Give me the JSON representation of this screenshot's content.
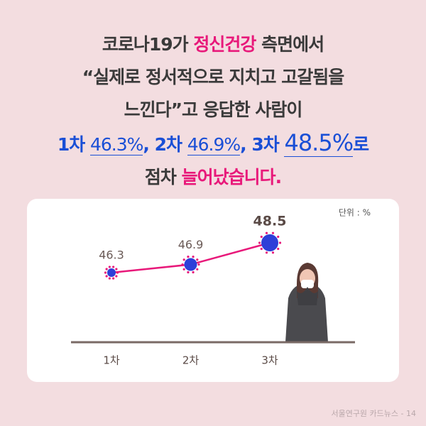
{
  "headline": {
    "lines": [
      [
        {
          "text": "코로나19가 "
        },
        {
          "text": "정신건강",
          "color": "#e8197a"
        },
        {
          "text": " 측면에서"
        }
      ],
      [
        {
          "text": "“실제로 정서적으로 지치고 고갈됨을"
        }
      ],
      [
        {
          "text": "느낀다”고 응답한 사람이"
        }
      ],
      [
        {
          "text": "1차 ",
          "color": "#1a4fd6"
        },
        {
          "text": "46.3%",
          "color": "#1a4fd6"
        },
        {
          "text": ", 2차 ",
          "color": "#1a4fd6"
        },
        {
          "text": "46.9%",
          "color": "#1a4fd6"
        },
        {
          "text": ", 3차 ",
          "color": "#1a4fd6"
        },
        {
          "text": "48.5%",
          "color": "#1a4fd6"
        },
        {
          "text": "로",
          "color": "#1a4fd6"
        }
      ],
      [
        {
          "text": "점차 "
        },
        {
          "text": "늘어났습니다.",
          "color": "#e8197a"
        }
      ]
    ]
  },
  "chart_data": {
    "type": "line",
    "unit": "단위 : %",
    "categories": [
      "1차",
      "2차",
      "3차"
    ],
    "values": [
      46.3,
      46.9,
      48.5
    ],
    "color": "#e8197a",
    "marker_color": "#2e3fd8"
  },
  "footer": "서울연구원 카드뉴스 - 14"
}
